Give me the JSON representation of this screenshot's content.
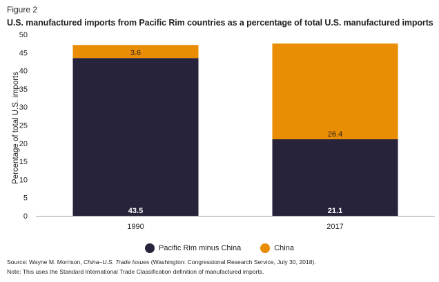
{
  "figure_label": "Figure 2",
  "title": "U.S. manufactured imports from Pacific Rim countries as a percentage of total U.S. manufactured imports",
  "source": {
    "prefix": "Source: Wayne M. Morrison, ",
    "italic": "China–U.S. Trade Issues",
    "suffix": " (Washington: Congressional Research Service, July 30, 2018)."
  },
  "note": "Note: This uses the Standard International Trade Classification definition of manufactured imports.",
  "chart_data": {
    "type": "bar",
    "stacked": true,
    "categories": [
      "1990",
      "2017"
    ],
    "series": [
      {
        "name": "Pacific Rim minus China",
        "values": [
          43.5,
          21.1
        ],
        "color": "#27233a",
        "labels": [
          "43.5",
          "21.1"
        ]
      },
      {
        "name": "China",
        "values": [
          3.6,
          26.4
        ],
        "color": "#e98d04",
        "labels": [
          "3.6",
          "26.4"
        ]
      }
    ],
    "ylabel": "Percentage of total U.S. imports",
    "ylim": [
      0,
      50
    ],
    "yticks": [
      "0",
      "5",
      "10",
      "15",
      "20",
      "25",
      "30",
      "35",
      "40",
      "45",
      "50"
    ],
    "grid": false,
    "legend_position": "bottom"
  }
}
